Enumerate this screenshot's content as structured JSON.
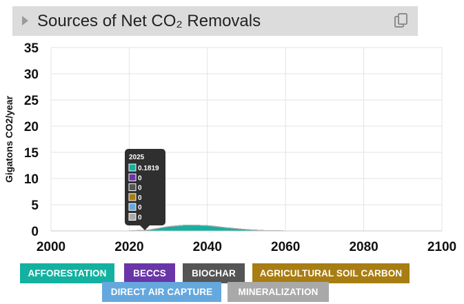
{
  "header": {
    "title": "Sources of Net CO₂ Removals"
  },
  "chart_data": {
    "type": "area",
    "title": "Sources of Net CO₂ Removals",
    "ylabel": "Gigatons CO2/year",
    "xlabel": "",
    "xlim": [
      2000,
      2100
    ],
    "ylim": [
      0,
      35
    ],
    "x_ticks": [
      "2000",
      "2020",
      "2040",
      "2060",
      "2080",
      "2100"
    ],
    "y_ticks": [
      "0",
      "5",
      "10",
      "15",
      "20",
      "25",
      "30",
      "35"
    ],
    "grid": true,
    "x": [
      2020,
      2025,
      2030,
      2035,
      2040,
      2045,
      2050,
      2055,
      2060,
      2070,
      2080,
      2090,
      2100
    ],
    "series": [
      {
        "name": "AFFORESTATION",
        "color": "#14b1a1",
        "values": [
          0,
          0.1819,
          0.8,
          1.1,
          1.0,
          0.6,
          0.25,
          0.05,
          0,
          0,
          0,
          0,
          0
        ]
      },
      {
        "name": "BECCS",
        "color": "#6a35a8",
        "values": [
          0,
          0,
          0,
          0,
          0,
          0,
          0,
          0,
          0,
          0,
          0,
          0,
          0
        ]
      },
      {
        "name": "BIOCHAR",
        "color": "#555555",
        "values": [
          0,
          0,
          0,
          0,
          0,
          0,
          0,
          0,
          0,
          0,
          0,
          0,
          0
        ]
      },
      {
        "name": "AGRICULTURAL SOIL CARBON",
        "color": "#a87d12",
        "values": [
          0,
          0,
          0,
          0,
          0,
          0,
          0,
          0,
          0,
          0,
          0,
          0,
          0
        ]
      },
      {
        "name": "DIRECT AIR CAPTURE",
        "color": "#65a8de",
        "values": [
          0,
          0,
          0,
          0,
          0,
          0,
          0,
          0,
          0,
          0,
          0,
          0,
          0
        ]
      },
      {
        "name": "MINERALIZATION",
        "color": "#a9a9a9",
        "values": [
          0,
          0,
          0,
          0,
          0,
          0,
          0,
          0,
          0,
          0,
          0,
          0,
          0
        ]
      }
    ],
    "tooltip": {
      "year": "2025",
      "values": [
        "0.1819",
        "0",
        "0",
        "0",
        "0",
        "0"
      ]
    },
    "legend_position": "bottom"
  }
}
